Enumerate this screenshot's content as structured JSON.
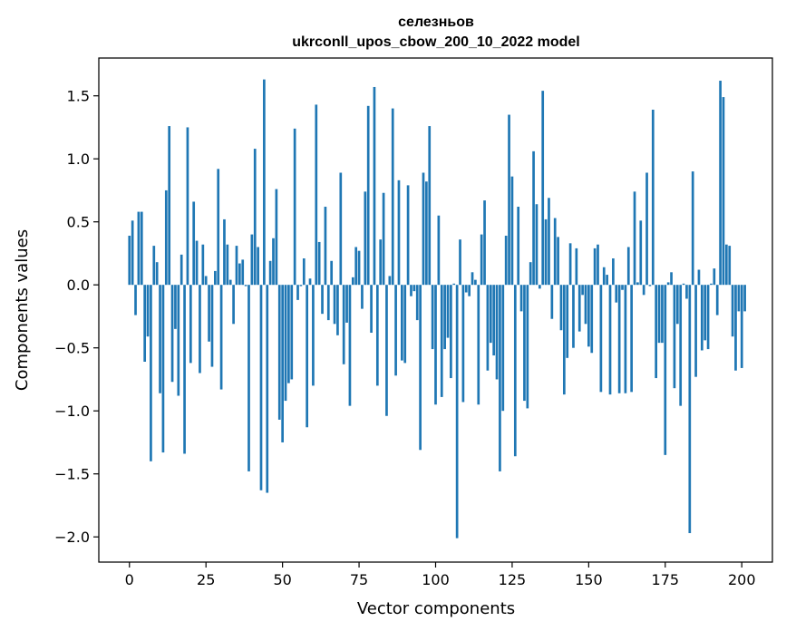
{
  "chart_data": {
    "type": "bar",
    "title_line1": "селезньов",
    "title_line2": "ukrconll_upos_cbow_200_10_2022 model",
    "xlabel": "Vector components",
    "ylabel": "Components values",
    "xlim": [
      -10,
      210
    ],
    "ylim": [
      -2.2,
      1.8
    ],
    "xticks": [
      0,
      25,
      50,
      75,
      100,
      125,
      150,
      175,
      200
    ],
    "xtick_labels": [
      "0",
      "25",
      "50",
      "75",
      "100",
      "125",
      "150",
      "175",
      "200"
    ],
    "yticks": [
      -2.0,
      -1.5,
      -1.0,
      -0.5,
      0.0,
      0.5,
      1.0,
      1.5
    ],
    "ytick_labels": [
      "−2.0",
      "−1.5",
      "−1.0",
      "−0.5",
      "0.0",
      "0.5",
      "1.0",
      "1.5"
    ],
    "bar_color": "#1f77b4",
    "values": [
      0.39,
      0.51,
      -0.24,
      0.58,
      0.58,
      -0.61,
      -0.41,
      -1.4,
      0.31,
      0.18,
      -0.86,
      -1.33,
      0.75,
      1.26,
      -0.77,
      -0.35,
      -0.88,
      0.24,
      -1.34,
      1.25,
      -0.62,
      0.66,
      0.35,
      -0.7,
      0.32,
      0.07,
      -0.45,
      -0.65,
      0.11,
      0.92,
      -0.83,
      0.52,
      0.32,
      0.04,
      -0.31,
      0.31,
      0.17,
      0.2,
      -0.01,
      -1.48,
      0.4,
      1.08,
      0.3,
      -1.63,
      1.63,
      -1.65,
      0.19,
      0.37,
      0.76,
      -1.07,
      -1.25,
      -0.92,
      -0.78,
      -0.75,
      1.24,
      -0.12,
      -0.01,
      0.21,
      -1.13,
      0.05,
      -0.8,
      1.43,
      0.34,
      -0.23,
      0.62,
      -0.28,
      0.19,
      -0.31,
      -0.4,
      0.89,
      -0.63,
      -0.3,
      -0.96,
      0.06,
      0.3,
      0.27,
      -0.19,
      0.74,
      1.42,
      -0.38,
      1.57,
      -0.8,
      0.36,
      0.73,
      -1.04,
      0.07,
      1.4,
      -0.72,
      0.83,
      -0.6,
      -0.62,
      0.79,
      -0.09,
      -0.05,
      -0.28,
      -1.31,
      0.89,
      0.82,
      1.26,
      -0.51,
      -0.95,
      0.55,
      -0.89,
      -0.51,
      -0.42,
      -0.74,
      0.01,
      -2.01,
      0.36,
      -0.93,
      -0.06,
      -0.09,
      0.1,
      0.04,
      -0.95,
      0.4,
      0.67,
      -0.68,
      -0.46,
      -0.56,
      -0.75,
      -1.48,
      -1.0,
      0.39,
      1.35,
      0.86,
      -1.36,
      0.62,
      -0.21,
      -0.92,
      -0.98,
      0.18,
      1.06,
      0.64,
      -0.03,
      1.54,
      0.52,
      0.69,
      -0.27,
      0.53,
      0.38,
      -0.36,
      -0.87,
      -0.58,
      0.33,
      -0.5,
      0.29,
      -0.37,
      -0.08,
      -0.31,
      -0.49,
      -0.54,
      0.29,
      0.32,
      -0.85,
      0.14,
      0.08,
      -0.87,
      0.21,
      -0.14,
      -0.86,
      -0.04,
      -0.86,
      0.3,
      -0.85,
      0.74,
      0.02,
      0.51,
      -0.08,
      0.89,
      -0.01,
      1.39,
      -0.74,
      -0.46,
      -0.46,
      -1.35,
      0.02,
      0.1,
      -0.82,
      -0.31,
      -0.96,
      0.01,
      -0.11,
      -1.97,
      0.9,
      -0.73,
      0.12,
      -0.52,
      -0.44,
      -0.51,
      0.01,
      0.13,
      -0.24,
      1.62,
      1.49,
      0.32,
      0.31,
      -0.41,
      -0.68,
      -0.21,
      -0.66,
      -0.21
    ]
  }
}
